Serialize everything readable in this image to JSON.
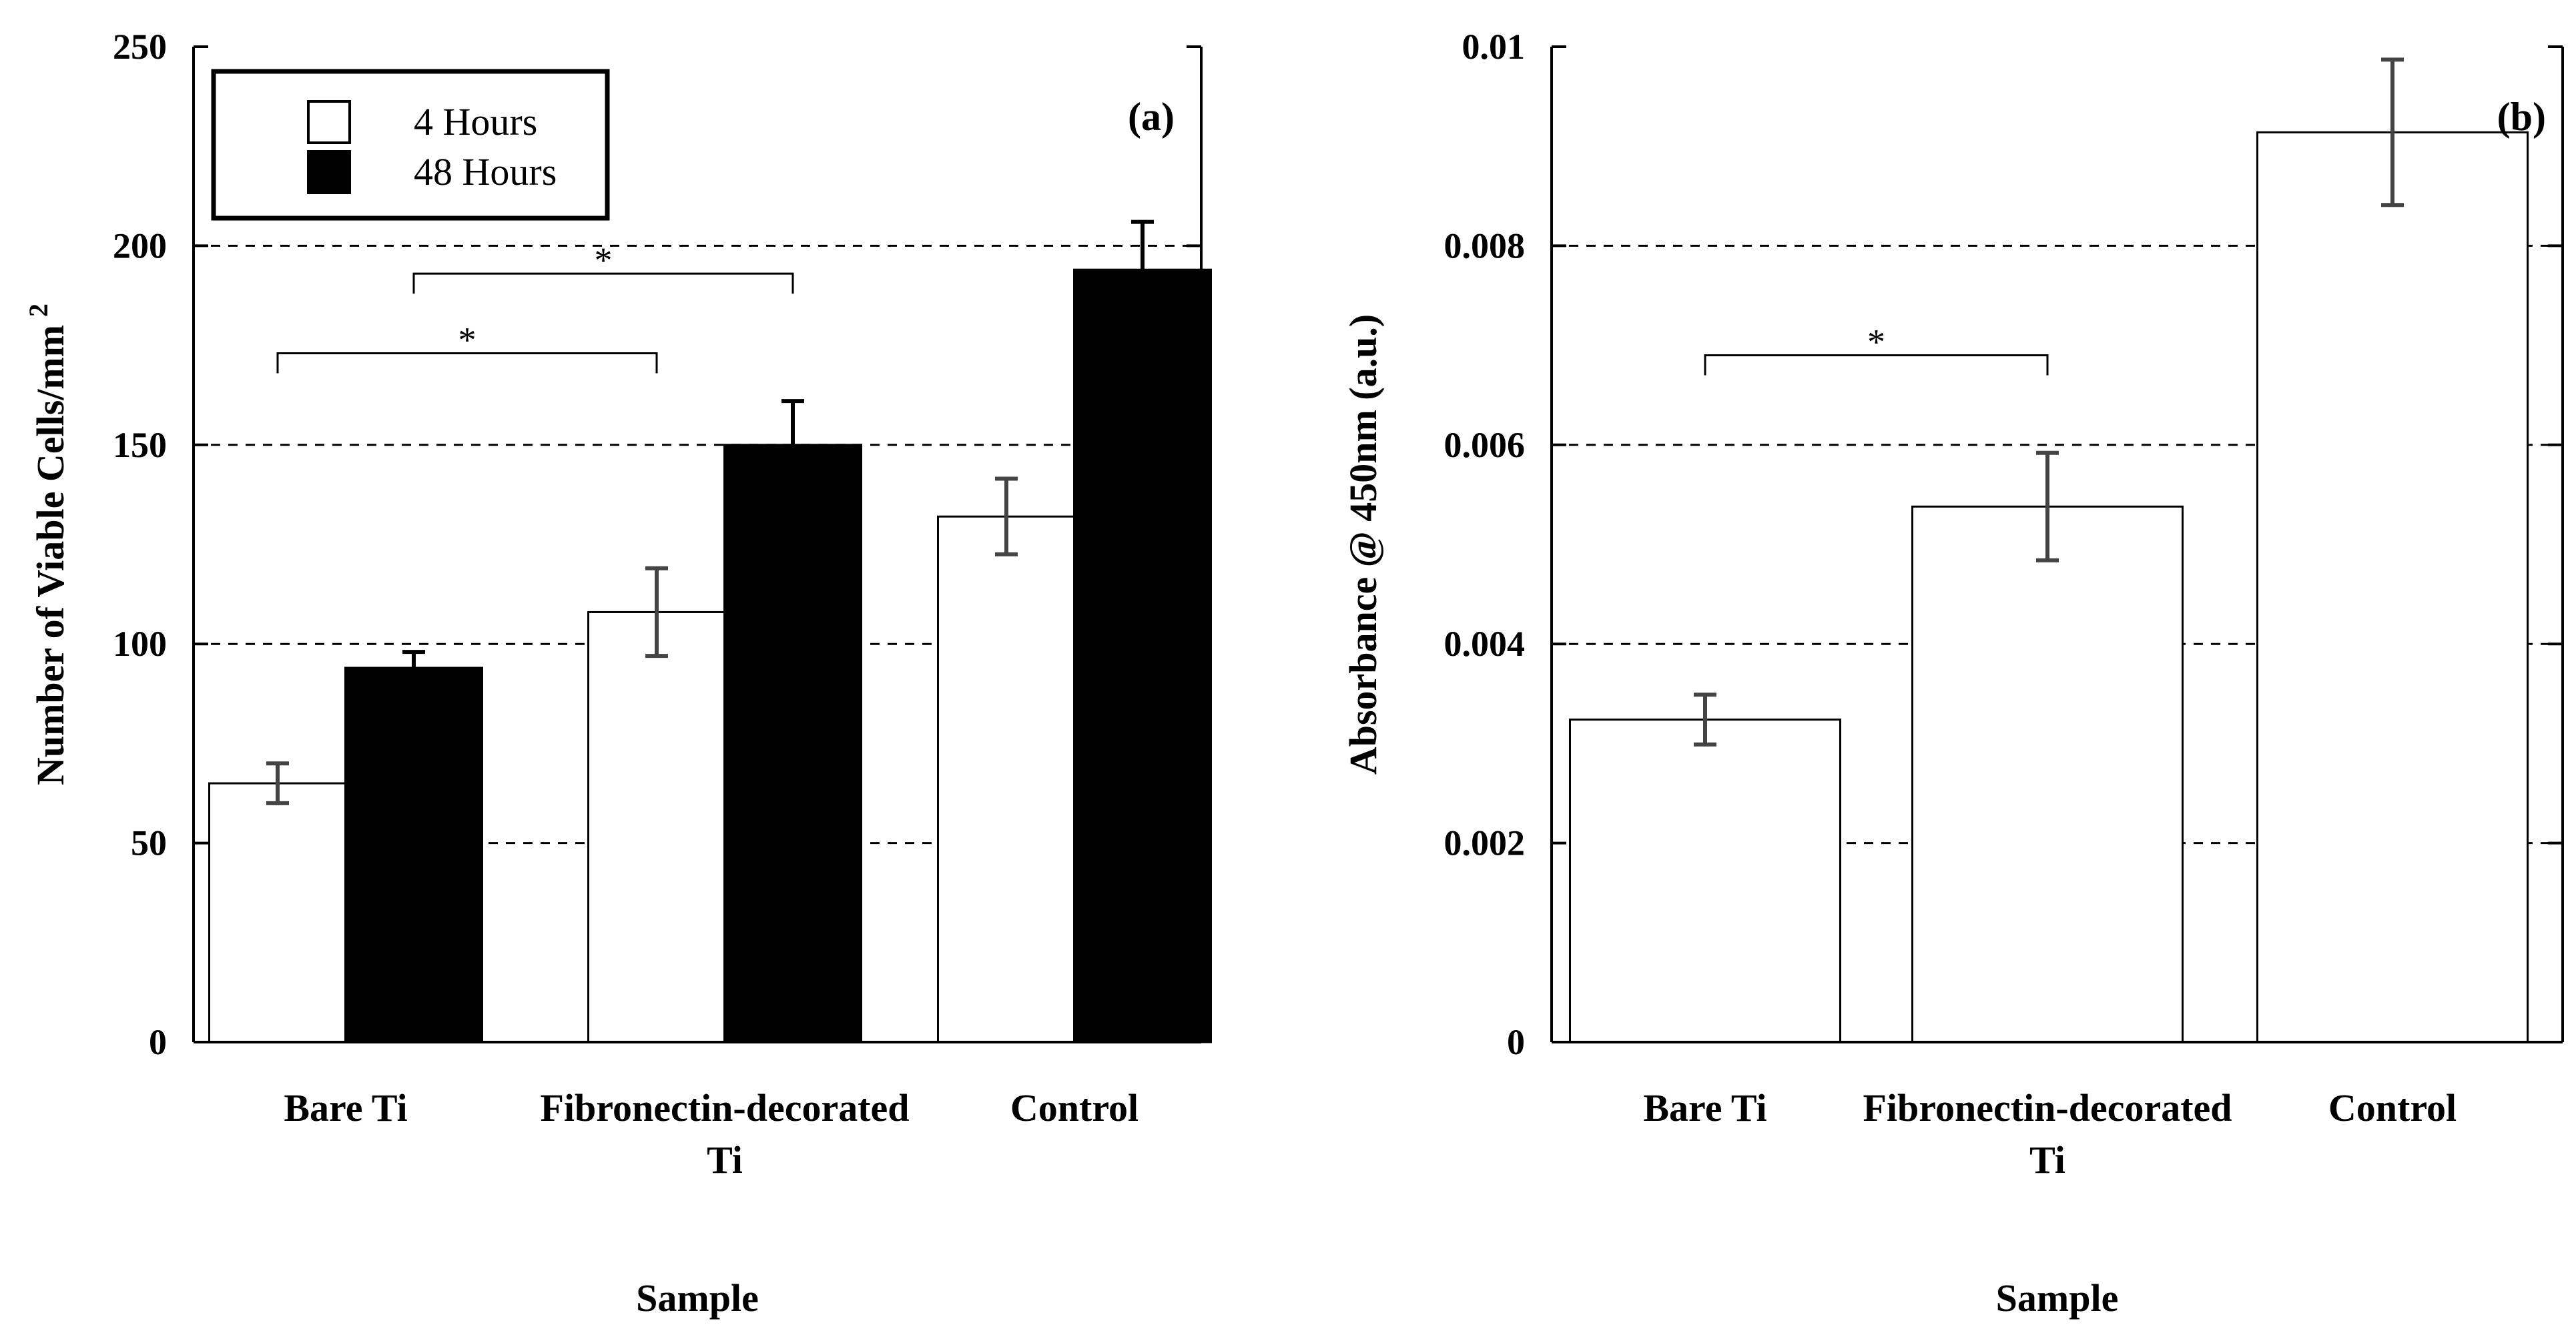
{
  "chart_data": [
    {
      "type": "bar",
      "panel_label": "(a)",
      "xlabel": "Sample",
      "ylabel": "Number of Viable Cells/mm",
      "ylabel_superscript": "2",
      "ylim": [
        0,
        250
      ],
      "yticks": [
        "0",
        "50",
        "100",
        "150",
        "200",
        "250"
      ],
      "ytick_values": [
        0,
        50,
        100,
        150,
        200,
        250
      ],
      "grid": "horizontal dashed",
      "categories": [
        [
          "Bare Ti"
        ],
        [
          "Fibronectin-decorated",
          "Ti"
        ],
        [
          "Control"
        ]
      ],
      "legend_position": "top-left",
      "series": [
        {
          "name": "4 Hours",
          "fill": "#ffffff",
          "values": [
            65,
            108,
            132
          ],
          "errors": [
            5,
            11,
            9.5
          ]
        },
        {
          "name": "48 Hours",
          "fill": "#000000",
          "values": [
            94,
            150,
            194
          ],
          "errors": [
            4,
            11,
            12
          ]
        }
      ],
      "significance": [
        {
          "label": "*",
          "from": "Bare Ti 4 Hours",
          "to": "Fibronectin-decorated Ti 4 Hours",
          "y": 173
        },
        {
          "label": "*",
          "from": "Bare Ti 48 Hours",
          "to": "Fibronectin-decorated Ti 48 Hours",
          "y": 193
        }
      ]
    },
    {
      "type": "bar",
      "panel_label": "(b)",
      "xlabel": "Sample",
      "ylabel": "Absorbance @ 450nm (a.u.)",
      "ylim": [
        0,
        0.01
      ],
      "yticks": [
        "0",
        "0.002",
        "0.004",
        "0.006",
        "0.008",
        "0.01"
      ],
      "ytick_values": [
        0,
        0.002,
        0.004,
        0.006,
        0.008,
        0.01
      ],
      "grid": "horizontal dashed",
      "categories": [
        [
          "Bare Ti"
        ],
        [
          "Fibronectin-decorated",
          "Ti"
        ],
        [
          "Control"
        ]
      ],
      "series": [
        {
          "name": "",
          "fill": "#ffffff",
          "values": [
            0.00324,
            0.00538,
            0.00914
          ],
          "errors": [
            0.00025,
            0.00054,
            0.00073
          ]
        }
      ],
      "significance": [
        {
          "label": "*",
          "from": "Bare Ti",
          "to": "Fibronectin-decorated Ti",
          "y": 0.0069
        }
      ]
    }
  ]
}
